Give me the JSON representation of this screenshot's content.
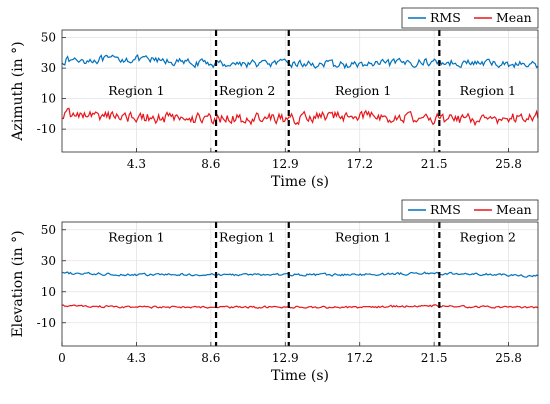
{
  "chart_data": [
    {
      "type": "line",
      "xlabel": "Time (s)",
      "ylabel": "Azimuth (in °)",
      "xlim": [
        0,
        27.5
      ],
      "ylim": [
        -25,
        55
      ],
      "xticks": [
        "4.3",
        "8.6",
        "12.9",
        "17.2",
        "21.5",
        "25.8"
      ],
      "yticks": [
        "-10",
        "10",
        "30",
        "50"
      ],
      "grid": true,
      "legend_position": "top-right",
      "dividers": [
        8.9,
        13.1,
        21.8
      ],
      "regions": [
        {
          "label": "Region 1",
          "x": 4.3,
          "y": 15
        },
        {
          "label": "Region 2",
          "x": 10.7,
          "y": 15
        },
        {
          "label": "Region 1",
          "x": 17.4,
          "y": 15
        },
        {
          "label": "Region 1",
          "x": 24.6,
          "y": 15
        }
      ],
      "series": [
        {
          "name": "RMS",
          "color": "#0072BD",
          "base": 33,
          "noise": 2.2,
          "profile": [
            [
              0,
              35
            ],
            [
              4,
              36
            ],
            [
              8,
              33
            ],
            [
              13,
              33
            ],
            [
              17,
              32
            ],
            [
              21,
              34
            ],
            [
              25,
              33
            ],
            [
              27.5,
              32
            ]
          ]
        },
        {
          "name": "Mean",
          "color": "#E8161B",
          "base": -2,
          "noise": 3.2,
          "profile": [
            [
              0,
              0
            ],
            [
              4,
              -2
            ],
            [
              8,
              -3
            ],
            [
              13,
              -3
            ],
            [
              17,
              -1
            ],
            [
              21,
              -3
            ],
            [
              25,
              -4
            ],
            [
              27.5,
              -1
            ]
          ]
        }
      ]
    },
    {
      "type": "line",
      "xlabel": "Time (s)",
      "ylabel": "Elevation (in °)",
      "xlim": [
        0,
        27.5
      ],
      "ylim": [
        -25,
        55
      ],
      "xticks": [
        "0",
        "4.3",
        "8.6",
        "12.9",
        "17.2",
        "21.5",
        "25.8"
      ],
      "yticks": [
        "-10",
        "10",
        "30",
        "50"
      ],
      "grid": true,
      "legend_position": "top-right",
      "dividers": [
        8.9,
        13.1,
        21.8
      ],
      "regions": [
        {
          "label": "Region 1",
          "x": 4.3,
          "y": 45
        },
        {
          "label": "Region 1",
          "x": 10.7,
          "y": 45
        },
        {
          "label": "Region 1",
          "x": 17.4,
          "y": 45
        },
        {
          "label": "Region 2",
          "x": 24.6,
          "y": 45
        }
      ],
      "series": [
        {
          "name": "RMS",
          "color": "#0072BD",
          "base": 21,
          "noise": 0.7,
          "profile": [
            [
              0,
              22
            ],
            [
              4,
              21
            ],
            [
              8,
              21
            ],
            [
              13,
              21
            ],
            [
              17,
              21
            ],
            [
              21,
              22
            ],
            [
              25,
              21
            ],
            [
              27.5,
              20
            ]
          ]
        },
        {
          "name": "Mean",
          "color": "#E8161B",
          "base": 0,
          "noise": 0.6,
          "profile": [
            [
              0,
              1
            ],
            [
              4,
              0
            ],
            [
              8,
              0
            ],
            [
              13,
              0
            ],
            [
              17,
              0
            ],
            [
              21,
              1
            ],
            [
              25,
              0
            ],
            [
              27.5,
              0
            ]
          ]
        }
      ]
    }
  ]
}
